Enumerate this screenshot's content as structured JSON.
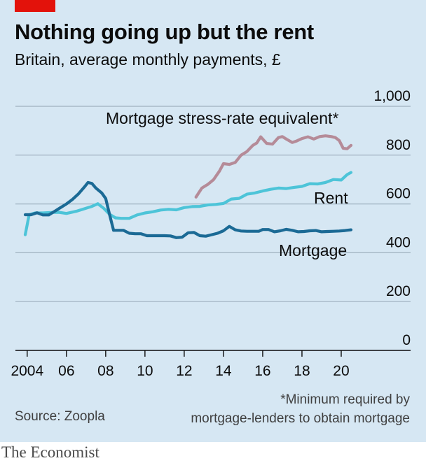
{
  "header": {
    "title": "Nothing going up but the rent",
    "subtitle": "Britain, average monthly payments, £"
  },
  "footer": {
    "footnote_line1": "*Minimum required by",
    "footnote_line2": "mortgage-lenders to obtain mortgage",
    "source": "Source: Zoopla",
    "brand": "The Economist"
  },
  "colors": {
    "background": "#d6e7f3",
    "brand_red": "#e3120b",
    "stress": "#b58b98",
    "rent": "#4dc4d8",
    "mortgage": "#1b6a95"
  },
  "chart_data": {
    "type": "line",
    "title": "Nothing going up but the rent",
    "subtitle": "Britain, average monthly payments, £",
    "xlabel": "",
    "ylabel": "",
    "xlim": [
      2003.4,
      2021.0
    ],
    "ylim": [
      0,
      1000
    ],
    "yticks": [
      0,
      200,
      400,
      600,
      800,
      1000
    ],
    "ytick_labels": [
      "0",
      "200",
      "400",
      "600",
      "800",
      "1,000"
    ],
    "xticks": [
      2004,
      2006,
      2008,
      2010,
      2012,
      2014,
      2016,
      2018,
      2020
    ],
    "xtick_labels": [
      "2004",
      "06",
      "08",
      "10",
      "12",
      "14",
      "16",
      "18",
      "20"
    ],
    "grid": "horizontal",
    "series": [
      {
        "name": "Mortgage stress-rate equivalent*",
        "color": "#b58b98",
        "x": [
          2012.6,
          2012.9,
          2013.2,
          2013.5,
          2013.8,
          2014.0,
          2014.3,
          2014.6,
          2014.9,
          2015.2,
          2015.5,
          2015.7,
          2015.9,
          2016.2,
          2016.5,
          2016.8,
          2017.0,
          2017.2,
          2017.5,
          2017.7,
          2018.0,
          2018.3,
          2018.6,
          2018.9,
          2019.2,
          2019.5,
          2019.7,
          2019.9,
          2020.1,
          2020.3,
          2020.5
        ],
        "y": [
          628,
          665,
          680,
          700,
          735,
          765,
          762,
          770,
          800,
          815,
          840,
          850,
          875,
          848,
          845,
          872,
          876,
          866,
          852,
          857,
          868,
          875,
          866,
          876,
          879,
          876,
          872,
          860,
          828,
          826,
          840
        ]
      },
      {
        "name": "Rent",
        "color": "#4dc4d8",
        "x": [
          2003.9,
          2004.1,
          2004.4,
          2004.8,
          2005.2,
          2005.6,
          2006.0,
          2006.5,
          2006.9,
          2007.3,
          2007.6,
          2007.9,
          2008.2,
          2008.5,
          2008.8,
          2009.2,
          2009.6,
          2010.0,
          2010.4,
          2010.8,
          2011.2,
          2011.6,
          2012.0,
          2012.4,
          2012.8,
          2013.2,
          2013.6,
          2014.0,
          2014.4,
          2014.8,
          2015.2,
          2015.6,
          2016.0,
          2016.4,
          2016.8,
          2017.2,
          2017.6,
          2018.0,
          2018.4,
          2018.8,
          2019.2,
          2019.6,
          2020.0,
          2020.3,
          2020.5
        ],
        "y": [
          474,
          556,
          563,
          563,
          565,
          566,
          561,
          570,
          580,
          590,
          601,
          582,
          557,
          543,
          541,
          541,
          555,
          563,
          568,
          575,
          578,
          576,
          585,
          589,
          590,
          596,
          598,
          602,
          620,
          623,
          640,
          645,
          653,
          660,
          665,
          663,
          668,
          672,
          683,
          682,
          688,
          700,
          698,
          720,
          729
        ]
      },
      {
        "name": "Mortgage",
        "color": "#1b6a95",
        "x": [
          2003.9,
          2004.2,
          2004.5,
          2004.8,
          2005.1,
          2005.4,
          2005.7,
          2006.0,
          2006.3,
          2006.6,
          2006.9,
          2007.1,
          2007.3,
          2007.5,
          2007.8,
          2008.0,
          2008.2,
          2008.4,
          2008.6,
          2008.9,
          2009.2,
          2009.5,
          2009.8,
          2010.1,
          2010.4,
          2010.7,
          2011.0,
          2011.3,
          2011.6,
          2011.9,
          2012.2,
          2012.5,
          2012.8,
          2013.1,
          2013.4,
          2013.7,
          2014.0,
          2014.3,
          2014.6,
          2014.9,
          2015.2,
          2015.5,
          2015.8,
          2016.0,
          2016.3,
          2016.6,
          2016.9,
          2017.2,
          2017.5,
          2017.8,
          2018.1,
          2018.4,
          2018.7,
          2019.0,
          2019.3,
          2019.6,
          2019.9,
          2020.2,
          2020.5
        ],
        "y": [
          556,
          556,
          564,
          555,
          555,
          570,
          585,
          600,
          618,
          640,
          668,
          688,
          684,
          665,
          645,
          622,
          555,
          492,
          492,
          492,
          480,
          478,
          478,
          470,
          470,
          470,
          470,
          469,
          462,
          464,
          482,
          483,
          470,
          468,
          474,
          480,
          490,
          508,
          494,
          489,
          488,
          488,
          488,
          495,
          495,
          486,
          490,
          496,
          492,
          486,
          487,
          490,
          491,
          486,
          487,
          488,
          489,
          491,
          494
        ]
      }
    ],
    "annotations": [
      {
        "text": "Mortgage stress-rate equivalent*",
        "series": "Mortgage stress-rate equivalent*"
      },
      {
        "text": "Rent",
        "series": "Rent"
      },
      {
        "text": "Mortgage",
        "series": "Mortgage"
      }
    ]
  }
}
